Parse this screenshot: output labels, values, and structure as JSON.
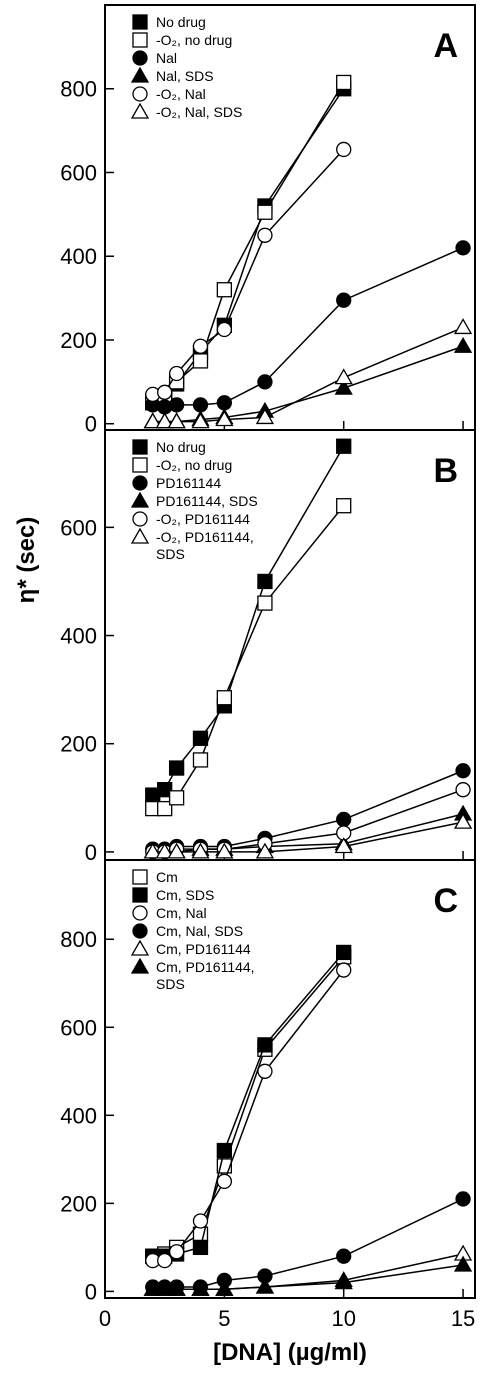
{
  "figure": {
    "xlabel": "[DNA] (µg/ml)",
    "ylabel": "η* (sec)",
    "x_ticks": [
      "0",
      "5",
      "10",
      "15"
    ]
  },
  "chart_data": [
    {
      "type": "line",
      "panel_label": "A",
      "xlim": [
        0,
        15.5
      ],
      "ylim": [
        -15,
        1000
      ],
      "y_ticks": [
        0,
        200,
        400,
        600,
        800
      ],
      "x": [
        2,
        2.5,
        3,
        4,
        5,
        6.7,
        10,
        15
      ],
      "series": [
        {
          "name": "No drug",
          "marker": "square-filled",
          "values": [
            50,
            60,
            95,
            170,
            235,
            520,
            800,
            null
          ]
        },
        {
          "name": "-O₂, no drug",
          "marker": "square-open",
          "values": [
            50,
            60,
            100,
            150,
            320,
            505,
            815,
            null
          ]
        },
        {
          "name": "Nal",
          "marker": "circle-filled",
          "values": [
            45,
            40,
            45,
            45,
            50,
            100,
            295,
            420
          ]
        },
        {
          "name": "Nal, SDS",
          "marker": "triangle-filled",
          "values": [
            5,
            5,
            5,
            10,
            15,
            30,
            85,
            185
          ]
        },
        {
          "name": "-O₂, Nal",
          "marker": "circle-open",
          "values": [
            70,
            75,
            120,
            185,
            225,
            450,
            655,
            null
          ]
        },
        {
          "name": "-O₂, Nal, SDS",
          "marker": "triangle-open",
          "values": [
            5,
            5,
            5,
            5,
            10,
            15,
            110,
            230
          ]
        }
      ]
    },
    {
      "type": "line",
      "panel_label": "B",
      "xlim": [
        0,
        15.5
      ],
      "ylim": [
        -15,
        780
      ],
      "y_ticks": [
        0,
        200,
        400,
        600
      ],
      "x": [
        2,
        2.5,
        3,
        4,
        5,
        6.7,
        10,
        15
      ],
      "series": [
        {
          "name": "No drug",
          "marker": "square-filled",
          "values": [
            105,
            115,
            155,
            210,
            270,
            500,
            750,
            null
          ]
        },
        {
          "name": "-O₂, no drug",
          "marker": "square-open",
          "values": [
            80,
            80,
            100,
            170,
            285,
            460,
            640,
            null
          ]
        },
        {
          "name": "PD161144",
          "marker": "circle-filled",
          "values": [
            5,
            5,
            10,
            10,
            10,
            25,
            60,
            150
          ]
        },
        {
          "name": "PD161144, SDS",
          "marker": "triangle-filled",
          "values": [
            0,
            0,
            0,
            5,
            5,
            10,
            15,
            70
          ]
        },
        {
          "name": "-O₂, PD161144",
          "marker": "circle-open",
          "values": [
            0,
            0,
            5,
            5,
            5,
            15,
            35,
            115
          ]
        },
        {
          "name": "-O₂, PD161144, SDS",
          "marker": "triangle-open",
          "values": [
            0,
            0,
            0,
            0,
            0,
            0,
            10,
            55
          ]
        }
      ]
    },
    {
      "type": "line",
      "panel_label": "C",
      "xlim": [
        0,
        15.5
      ],
      "ylim": [
        -15,
        980
      ],
      "y_ticks": [
        0,
        200,
        400,
        600,
        800
      ],
      "x": [
        2,
        2.5,
        3,
        4,
        5,
        6.7,
        10,
        15
      ],
      "series": [
        {
          "name": "Cm",
          "marker": "square-open",
          "values": [
            80,
            85,
            100,
            130,
            285,
            550,
            760,
            null
          ]
        },
        {
          "name": "Cm, SDS",
          "marker": "square-filled",
          "values": [
            80,
            80,
            85,
            100,
            320,
            560,
            770,
            null
          ]
        },
        {
          "name": "Cm, Nal",
          "marker": "circle-open",
          "values": [
            70,
            70,
            90,
            160,
            250,
            500,
            730,
            null
          ]
        },
        {
          "name": "Cm, Nal, SDS",
          "marker": "circle-filled",
          "values": [
            10,
            10,
            10,
            10,
            25,
            35,
            80,
            210
          ]
        },
        {
          "name": "Cm, PD161144",
          "marker": "triangle-open",
          "values": [
            5,
            5,
            5,
            5,
            5,
            10,
            25,
            85
          ]
        },
        {
          "name": "Cm, PD161144, SDS",
          "marker": "triangle-filled",
          "values": [
            5,
            5,
            5,
            5,
            5,
            10,
            20,
            60
          ]
        }
      ]
    }
  ]
}
